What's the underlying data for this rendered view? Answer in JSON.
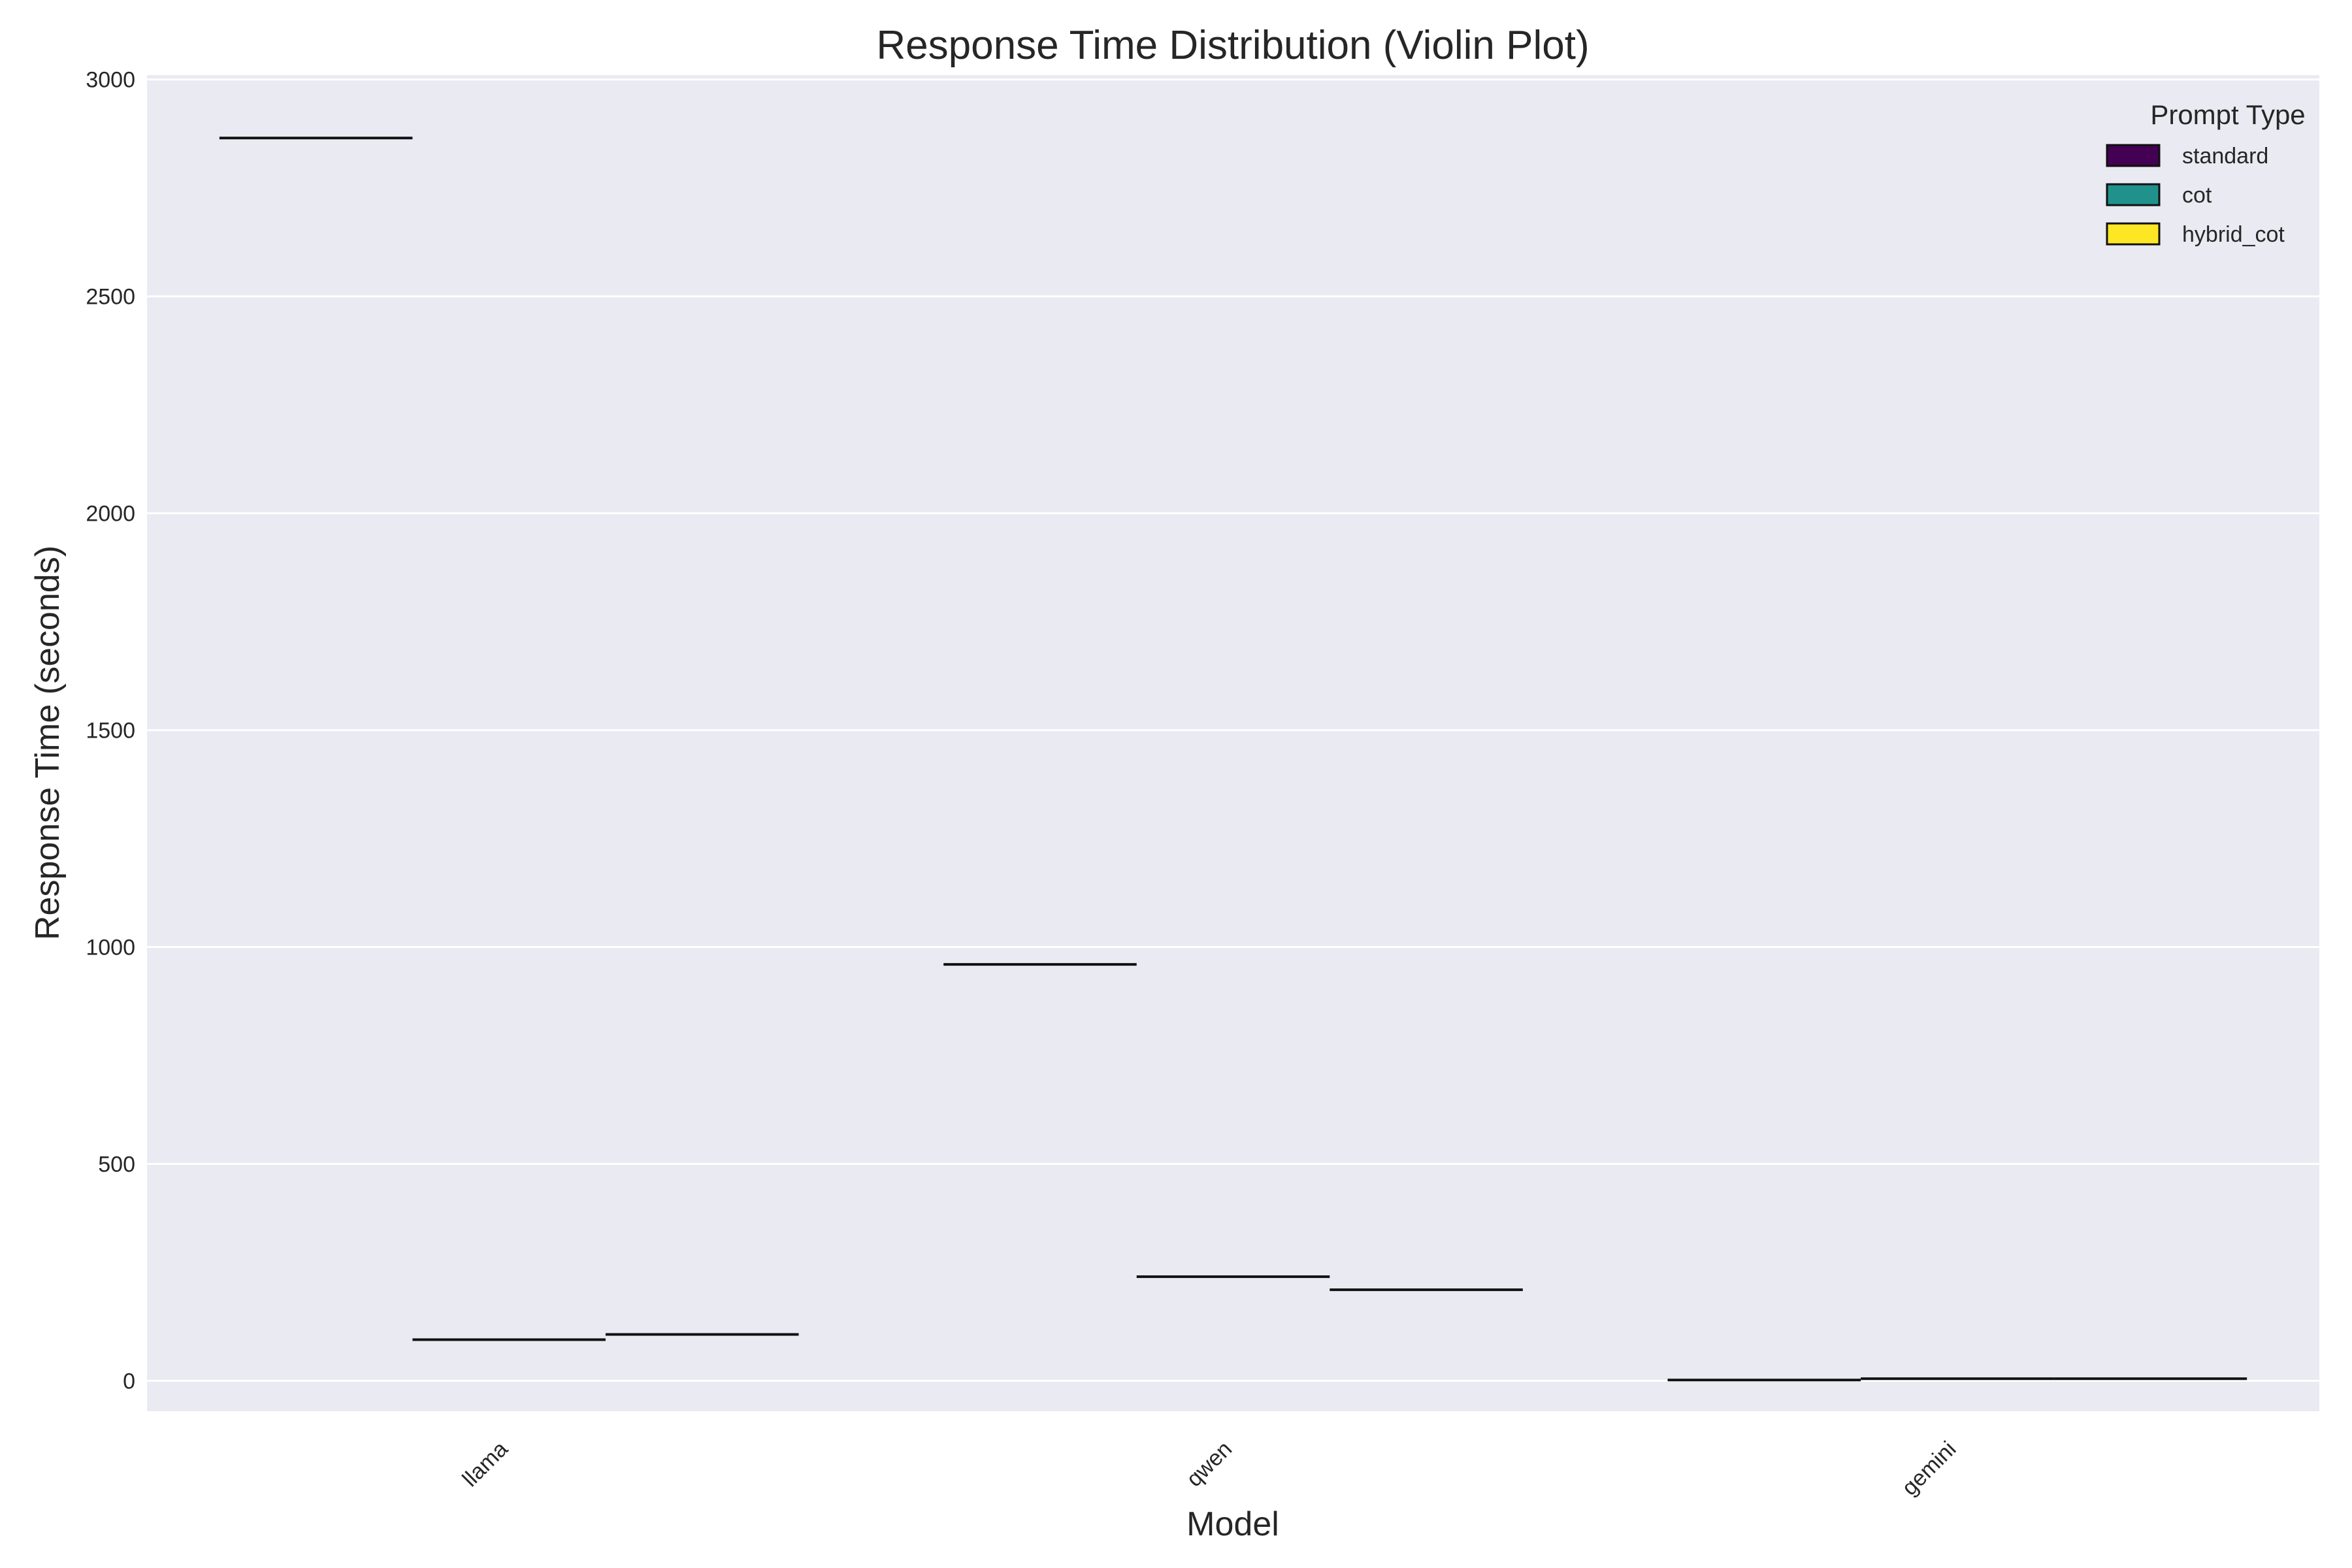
{
  "chart_data": {
    "type": "violin",
    "title": "Response Time Distribution (Violin Plot)",
    "xlabel": "Model",
    "ylabel": "Response Time (seconds)",
    "categories": [
      "llama",
      "qwen",
      "gemini"
    ],
    "ylim": [
      -70,
      3010
    ],
    "yticks": [
      0,
      500,
      1000,
      1500,
      2000,
      2500,
      3000
    ],
    "grid": true,
    "legend": {
      "title": "Prompt Type",
      "placement": "top-right"
    },
    "series": [
      {
        "name": "standard",
        "color": "#440154",
        "values": [
          2865,
          960,
          2
        ]
      },
      {
        "name": "cot",
        "color": "#21918c",
        "values": [
          95,
          240,
          5
        ]
      },
      {
        "name": "hybrid_cot",
        "color": "#fde725",
        "values": [
          107,
          210,
          5
        ]
      }
    ]
  }
}
